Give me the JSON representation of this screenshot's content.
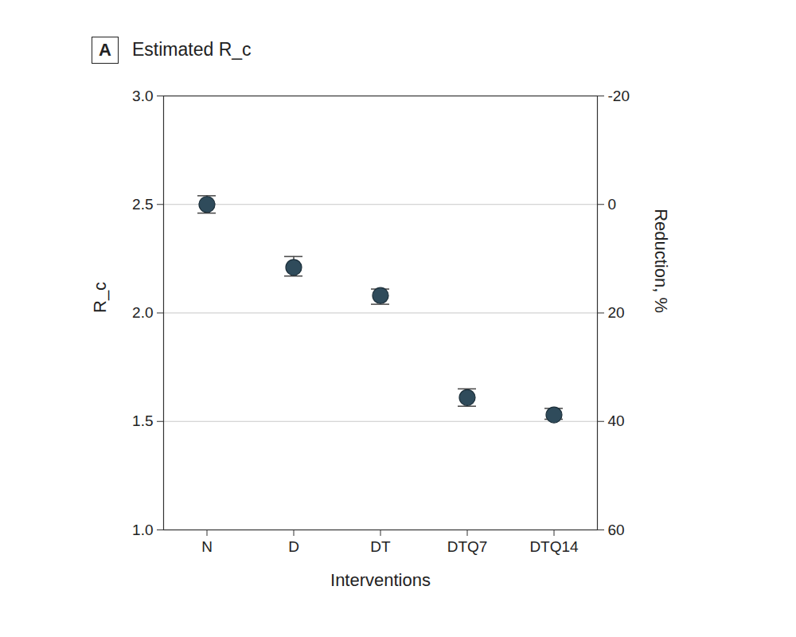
{
  "chart_data": {
    "type": "scatter",
    "panel_label": "A",
    "title": "Estimated R_c",
    "xlabel": "Interventions",
    "ylabel": "R_c",
    "y2label": "Reduction, %",
    "categories": [
      "N",
      "D",
      "DT",
      "DTQ7",
      "DTQ14"
    ],
    "values": [
      2.5,
      2.21,
      2.08,
      1.61,
      1.53
    ],
    "ci_lower": [
      2.46,
      2.17,
      2.04,
      1.57,
      1.51
    ],
    "ci_upper": [
      2.54,
      2.26,
      2.11,
      1.65,
      1.56
    ],
    "color": "#2f4b5b",
    "marker": "circle",
    "ylim": [
      1,
      3
    ],
    "yticks": [
      {
        "value": 1,
        "label": "1.0"
      },
      1.5,
      {
        "value": 2,
        "label": "2.0"
      },
      2.5,
      {
        "value": 3,
        "label": "3.0"
      }
    ],
    "y2lim": [
      60,
      -20
    ],
    "y2ticks": [
      60,
      40,
      20,
      0,
      -20
    ],
    "grid": true
  }
}
